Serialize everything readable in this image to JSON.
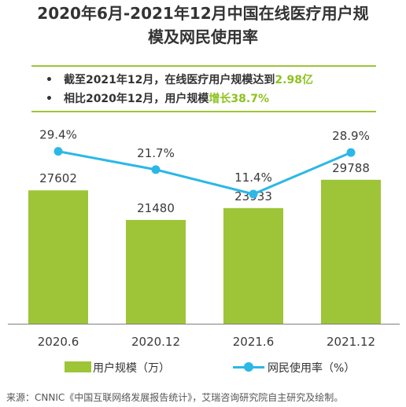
{
  "title_line1": "2020年6月-2021年12月中国在线医疗用户规",
  "title_line2": "模及网民使用率",
  "highlights": [
    {
      "prefix": "截至2021年12月，在线医疗用户规模达到",
      "highlight": "2.98亿"
    },
    {
      "prefix": "相比2020年12月，用户规模",
      "highlight": "增长38.7%"
    }
  ],
  "bullet_char": "•",
  "legend": {
    "bar_label": "用户规模（万）",
    "line_label": "网民使用率（%）"
  },
  "source": "来源：CNNIC《中国互联网络发展报告统计》，艾瑞咨询研究院自主研究及绘制。",
  "colors": {
    "bar": "#9dc537",
    "line": "#2bb8e6",
    "accent": "#8dc21f"
  },
  "chart_data": {
    "type": "bar",
    "categories": [
      "2020.6",
      "2020.12",
      "2021.6",
      "2021.12"
    ],
    "series": [
      {
        "name": "用户规模（万）",
        "type": "bar",
        "values": [
          27602,
          21480,
          23933,
          29788
        ]
      },
      {
        "name": "网民使用率（%）",
        "type": "line",
        "values": [
          29.4,
          21.7,
          11.4,
          28.9
        ],
        "labels": [
          "29.4%",
          "21.7%",
          "11.4%",
          "28.9%"
        ]
      }
    ],
    "bar_value_labels": [
      "27602",
      "21480",
      "23933",
      "29788"
    ]
  }
}
